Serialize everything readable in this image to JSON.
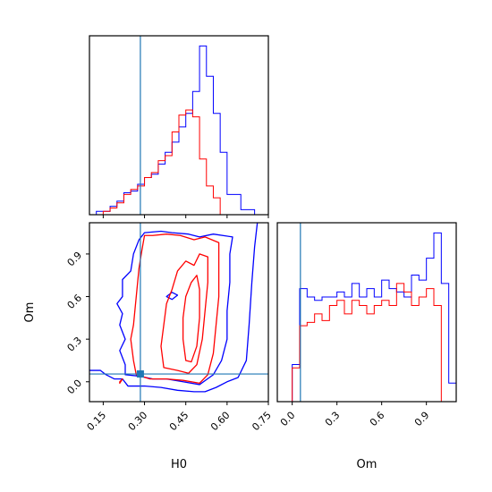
{
  "chart_data": {
    "type": "corner",
    "parameters": [
      "H0",
      "Om"
    ],
    "truths": {
      "H0": 0.285,
      "Om": 0.055
    },
    "colors": {
      "sample_a": "#0000ff",
      "sample_b": "#ff0000",
      "truth": "#1f77b4"
    },
    "panels": [
      {
        "id": "hist-H0",
        "type": "step-histogram",
        "xlim": [
          0.1,
          0.75
        ],
        "ylim": [
          0,
          1.06
        ],
        "bin_edges": [
          0.1,
          0.125,
          0.15,
          0.175,
          0.2,
          0.225,
          0.25,
          0.275,
          0.3,
          0.325,
          0.35,
          0.375,
          0.4,
          0.425,
          0.45,
          0.475,
          0.5,
          0.525,
          0.55,
          0.575,
          0.6,
          0.625,
          0.65,
          0.675,
          0.7,
          0.725,
          0.75
        ],
        "series": [
          {
            "name": "",
            "color": "#0000ff",
            "values": [
              0.0,
              0.02,
              0.02,
              0.05,
              0.08,
              0.13,
              0.14,
              0.18,
              0.22,
              0.24,
              0.3,
              0.37,
              0.43,
              0.52,
              0.6,
              0.73,
              1.0,
              0.82,
              0.6,
              0.37,
              0.12,
              0.12,
              0.03,
              0.03,
              0.0,
              0.0
            ]
          },
          {
            "name": "",
            "color": "#ff0000",
            "values": [
              0.0,
              0.0,
              0.02,
              0.04,
              0.07,
              0.12,
              0.15,
              0.17,
              0.22,
              0.25,
              0.32,
              0.35,
              0.49,
              0.59,
              0.62,
              0.58,
              0.33,
              0.17,
              0.1,
              0.0,
              0.0,
              0.0,
              0.0,
              0.0,
              0.0,
              0.0
            ]
          }
        ],
        "x_ticks": [
          0.15,
          0.3,
          0.45,
          0.6,
          0.75
        ],
        "truth_x": 0.285
      },
      {
        "id": "hist-Om",
        "type": "step-histogram",
        "xlim": [
          -0.1,
          1.1
        ],
        "ylim": [
          0,
          1.06
        ],
        "bin_edges": [
          -0.1,
          -0.05,
          0.0,
          0.05,
          0.1,
          0.15,
          0.2,
          0.25,
          0.3,
          0.35,
          0.4,
          0.45,
          0.5,
          0.55,
          0.6,
          0.65,
          0.7,
          0.75,
          0.8,
          0.85,
          0.9,
          0.95,
          1.0,
          1.05,
          1.1
        ],
        "series": [
          {
            "name": "",
            "color": "#0000ff",
            "values": [
              0.0,
              0.0,
              0.22,
              0.67,
              0.62,
              0.6,
              0.62,
              0.62,
              0.65,
              0.62,
              0.7,
              0.62,
              0.67,
              0.62,
              0.72,
              0.67,
              0.65,
              0.62,
              0.75,
              0.72,
              0.85,
              1.0,
              0.7,
              0.11
            ]
          },
          {
            "name": "",
            "color": "#ff0000",
            "values": [
              0.0,
              0.0,
              0.2,
              0.45,
              0.47,
              0.52,
              0.48,
              0.57,
              0.6,
              0.52,
              0.6,
              0.57,
              0.52,
              0.57,
              0.6,
              0.57,
              0.7,
              0.65,
              0.57,
              0.62,
              0.67,
              0.57,
              0.0,
              0.0
            ]
          }
        ],
        "x_ticks": [
          0.0,
          0.3,
          0.6,
          0.9
        ],
        "truth_x": 0.055
      },
      {
        "id": "contour-H0-Om",
        "type": "contour",
        "xlim": [
          0.1,
          0.75
        ],
        "ylim": [
          -0.14,
          1.12
        ],
        "x_ticks": [
          0.15,
          0.3,
          0.45,
          0.6,
          0.75
        ],
        "y_ticks": [
          0.0,
          0.3,
          0.6,
          0.9
        ],
        "truth_point": [
          0.285,
          0.055
        ],
        "contours": [
          {
            "name": "",
            "color": "#0000ff",
            "closed": false,
            "points": [
              [
                0.1,
                0.08
              ],
              [
                0.14,
                0.08
              ],
              [
                0.16,
                0.05
              ],
              [
                0.19,
                0.02
              ],
              [
                0.22,
                0.02
              ],
              [
                0.24,
                -0.03
              ],
              [
                0.3,
                -0.03
              ],
              [
                0.36,
                -0.04
              ],
              [
                0.42,
                -0.06
              ],
              [
                0.48,
                -0.07
              ],
              [
                0.52,
                -0.07
              ],
              [
                0.56,
                -0.04
              ],
              [
                0.6,
                0.0
              ],
              [
                0.64,
                0.03
              ],
              [
                0.67,
                0.15
              ],
              [
                0.68,
                0.4
              ],
              [
                0.69,
                0.7
              ],
              [
                0.7,
                0.95
              ],
              [
                0.71,
                1.12
              ]
            ]
          },
          {
            "name": "",
            "color": "#0000ff",
            "closed": true,
            "points": [
              [
                0.23,
                0.05
              ],
              [
                0.28,
                0.04
              ],
              [
                0.33,
                0.02
              ],
              [
                0.38,
                0.02
              ],
              [
                0.44,
                0.0
              ],
              [
                0.5,
                -0.02
              ],
              [
                0.55,
                0.05
              ],
              [
                0.58,
                0.15
              ],
              [
                0.6,
                0.3
              ],
              [
                0.6,
                0.5
              ],
              [
                0.61,
                0.7
              ],
              [
                0.61,
                0.9
              ],
              [
                0.62,
                1.02
              ],
              [
                0.55,
                1.04
              ],
              [
                0.5,
                1.02
              ],
              [
                0.46,
                1.04
              ],
              [
                0.4,
                1.05
              ],
              [
                0.36,
                1.06
              ],
              [
                0.3,
                1.05
              ],
              [
                0.28,
                1.0
              ],
              [
                0.26,
                0.9
              ],
              [
                0.25,
                0.78
              ],
              [
                0.22,
                0.72
              ],
              [
                0.22,
                0.6
              ],
              [
                0.2,
                0.55
              ],
              [
                0.22,
                0.48
              ],
              [
                0.21,
                0.4
              ],
              [
                0.23,
                0.3
              ],
              [
                0.21,
                0.22
              ],
              [
                0.23,
                0.12
              ]
            ]
          },
          {
            "name": "",
            "color": "#0000ff",
            "closed": true,
            "points": [
              [
                0.38,
                0.6
              ],
              [
                0.4,
                0.63
              ],
              [
                0.42,
                0.61
              ],
              [
                0.4,
                0.58
              ]
            ]
          },
          {
            "name": "",
            "color": "#ff0000",
            "closed": true,
            "points": [
              [
                0.27,
                0.05
              ],
              [
                0.32,
                0.02
              ],
              [
                0.38,
                0.02
              ],
              [
                0.44,
                0.01
              ],
              [
                0.5,
                -0.01
              ],
              [
                0.53,
                0.05
              ],
              [
                0.55,
                0.2
              ],
              [
                0.56,
                0.4
              ],
              [
                0.57,
                0.6
              ],
              [
                0.57,
                0.8
              ],
              [
                0.57,
                0.98
              ],
              [
                0.52,
                1.02
              ],
              [
                0.48,
                1.0
              ],
              [
                0.43,
                1.03
              ],
              [
                0.38,
                1.04
              ],
              [
                0.33,
                1.03
              ],
              [
                0.3,
                1.03
              ],
              [
                0.29,
                0.92
              ],
              [
                0.28,
                0.8
              ],
              [
                0.27,
                0.6
              ],
              [
                0.26,
                0.4
              ],
              [
                0.25,
                0.3
              ],
              [
                0.26,
                0.15
              ]
            ]
          },
          {
            "name": "",
            "color": "#ff0000",
            "closed": true,
            "points": [
              [
                0.37,
                0.1
              ],
              [
                0.42,
                0.08
              ],
              [
                0.46,
                0.06
              ],
              [
                0.49,
                0.12
              ],
              [
                0.51,
                0.3
              ],
              [
                0.52,
                0.5
              ],
              [
                0.53,
                0.7
              ],
              [
                0.53,
                0.88
              ],
              [
                0.5,
                0.9
              ],
              [
                0.48,
                0.82
              ],
              [
                0.45,
                0.85
              ],
              [
                0.42,
                0.78
              ],
              [
                0.4,
                0.65
              ],
              [
                0.38,
                0.55
              ],
              [
                0.37,
                0.4
              ],
              [
                0.36,
                0.25
              ]
            ]
          },
          {
            "name": "",
            "color": "#ff0000",
            "closed": true,
            "points": [
              [
                0.45,
                0.15
              ],
              [
                0.47,
                0.14
              ],
              [
                0.49,
                0.25
              ],
              [
                0.5,
                0.45
              ],
              [
                0.5,
                0.65
              ],
              [
                0.49,
                0.75
              ],
              [
                0.47,
                0.7
              ],
              [
                0.45,
                0.6
              ],
              [
                0.44,
                0.45
              ],
              [
                0.44,
                0.3
              ]
            ]
          },
          {
            "name": "",
            "color": "#ff0000",
            "closed": true,
            "points": [
              [
                0.21,
                0.0
              ],
              [
                0.22,
                0.02
              ],
              [
                0.21,
                -0.01
              ]
            ]
          }
        ]
      }
    ],
    "xlabels": [
      "H0",
      "Om"
    ],
    "ylabels": [
      "Om"
    ],
    "grid": false,
    "legend": "none"
  }
}
